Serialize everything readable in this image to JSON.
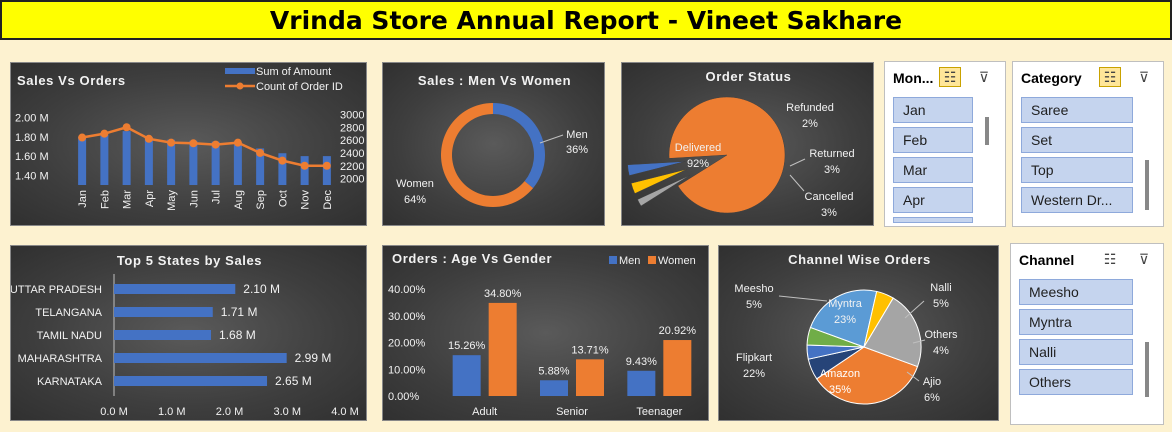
{
  "title": "Vrinda Store Annual Report - Vineet Sakhare",
  "sales_vs_orders": {
    "title": "Sales Vs Orders",
    "legend": [
      "Sum of Amount",
      "Count of Order ID"
    ],
    "left_ticks": [
      "2.00 M",
      "1.80 M",
      "1.60 M",
      "1.40 M"
    ],
    "right_ticks": [
      "3000",
      "2800",
      "2600",
      "2400",
      "2200",
      "2000"
    ],
    "months": [
      "Jan",
      "Feb",
      "Mar",
      "Apr",
      "May",
      "Jun",
      "Jul",
      "Aug",
      "Sep",
      "Oct",
      "Nov",
      "Dec"
    ]
  },
  "sales_men_women": {
    "title": "Sales : Men Vs Women",
    "men_label": "Men",
    "men_pct": "36%",
    "women_label": "Women",
    "women_pct": "64%"
  },
  "order_status": {
    "title": "Order Status",
    "labels": [
      {
        "name": "Delivered",
        "pct": "92%"
      },
      {
        "name": "Refunded",
        "pct": "2%"
      },
      {
        "name": "Returned",
        "pct": "3%"
      },
      {
        "name": "Cancelled",
        "pct": "3%"
      }
    ]
  },
  "top_states": {
    "title": "Top 5 States by Sales",
    "x_ticks": [
      "0.0 M",
      "1.0 M",
      "2.0 M",
      "3.0 M",
      "4.0 M"
    ]
  },
  "age_gender": {
    "title": "Orders : Age Vs Gender",
    "legend": [
      "Men",
      "Women"
    ],
    "y_ticks": [
      "40.00%",
      "30.00%",
      "20.00%",
      "10.00%",
      "0.00%"
    ]
  },
  "channel_orders": {
    "title": "Channel Wise Orders"
  },
  "slicers": {
    "month": {
      "header": "Mon...",
      "items": [
        "Jan",
        "Feb",
        "Mar",
        "Apr"
      ]
    },
    "category": {
      "header": "Category",
      "items": [
        "Saree",
        "Set",
        "Top",
        "Western Dr..."
      ]
    },
    "channel": {
      "header": "Channel",
      "items": [
        "Meesho",
        "Myntra",
        "Nalli",
        "Others"
      ]
    }
  },
  "colors": {
    "blue": "#4472c4",
    "orange": "#ed7d31",
    "gray": "#a5a5a5",
    "yellow": "#ffc000",
    "light_blue": "#5b9bd5",
    "green": "#70ad47",
    "navy": "#264478",
    "title_bg": "#ffff00"
  },
  "chart_data": [
    {
      "type": "bar",
      "title": "Sales Vs Orders",
      "categories": [
        "Jan",
        "Feb",
        "Mar",
        "Apr",
        "May",
        "Jun",
        "Jul",
        "Aug",
        "Sep",
        "Oct",
        "Nov",
        "Dec"
      ],
      "series": [
        {
          "name": "Sum of Amount",
          "values": [
            1.8,
            1.82,
            1.86,
            1.8,
            1.77,
            1.76,
            1.75,
            1.72,
            1.68,
            1.63,
            1.6,
            1.6
          ],
          "axis": "left"
        },
        {
          "name": "Count of Order ID",
          "type": "line",
          "values": [
            2640,
            2700,
            2800,
            2620,
            2560,
            2550,
            2530,
            2560,
            2400,
            2280,
            2200,
            2200
          ],
          "axis": "right"
        }
      ],
      "ylim": [
        1.3,
        2.1
      ],
      "y2lim": [
        1900,
        3100
      ]
    },
    {
      "type": "pie",
      "title": "Sales : Men Vs Women",
      "categories": [
        "Men",
        "Women"
      ],
      "values": [
        36,
        64
      ]
    },
    {
      "type": "pie",
      "title": "Order Status",
      "categories": [
        "Delivered",
        "Refunded",
        "Returned",
        "Cancelled"
      ],
      "values": [
        92,
        2,
        3,
        3
      ]
    },
    {
      "type": "bar",
      "title": "Top 5 States by Sales",
      "categories": [
        "UTTAR PRADESH",
        "TELANGANA",
        "TAMIL NADU",
        "MAHARASHTRA",
        "KARNATAKA"
      ],
      "values": [
        2.1,
        1.71,
        1.68,
        2.99,
        2.65
      ],
      "value_labels": [
        "2.10 M",
        "1.71 M",
        "1.68 M",
        "2.99 M",
        "2.65 M"
      ],
      "xlim": [
        0,
        4
      ]
    },
    {
      "type": "bar",
      "title": "Orders : Age Vs Gender",
      "categories": [
        "Adult",
        "Senior",
        "Teenager"
      ],
      "series": [
        {
          "name": "Men",
          "values": [
            15.26,
            5.88,
            9.43
          ],
          "labels": [
            "15.26%",
            "5.88%",
            "9.43%"
          ]
        },
        {
          "name": "Women",
          "values": [
            34.8,
            13.71,
            20.92
          ],
          "labels": [
            "34.80%",
            "13.71%",
            "20.92%"
          ]
        }
      ],
      "ylim": [
        0,
        40
      ]
    },
    {
      "type": "pie",
      "title": "Channel Wise Orders",
      "categories": [
        "Amazon",
        "Ajio",
        "Others",
        "Nalli",
        "Myntra",
        "Meesho",
        "Flipkart"
      ],
      "values": [
        35,
        6,
        4,
        5,
        23,
        5,
        22
      ],
      "labels": [
        "35%",
        "6%",
        "4%",
        "5%",
        "23%",
        "5%",
        "22%"
      ]
    }
  ]
}
